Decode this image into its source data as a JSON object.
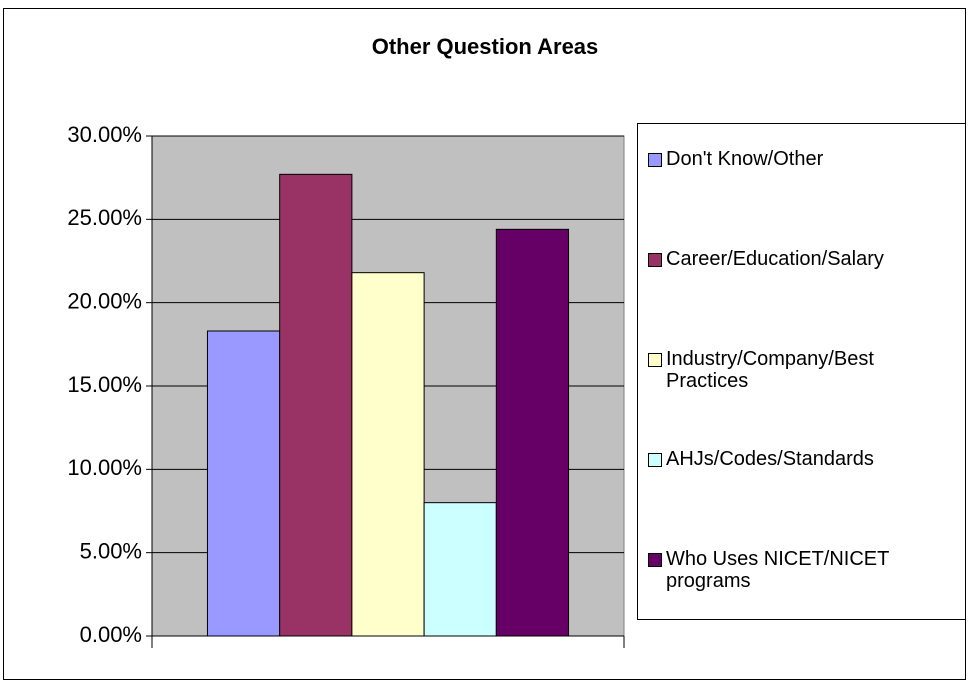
{
  "chart_data": {
    "type": "bar",
    "title": "Other Question Areas",
    "categories": [
      null
    ],
    "series": [
      {
        "name": "Don't Know/Other",
        "color": "#9999ff",
        "values": [
          18.3
        ]
      },
      {
        "name": "Career/Education/Salary",
        "color": "#993366",
        "values": [
          27.7
        ]
      },
      {
        "name": "Industry/Company/Best Practices",
        "color": "#ffffcc",
        "values": [
          21.8
        ]
      },
      {
        "name": "AHJs/Codes/Standards",
        "color": "#ccffff",
        "values": [
          8.0
        ]
      },
      {
        "name": "Who Uses NICET/NICET programs",
        "color": "#660066",
        "values": [
          24.4
        ]
      }
    ],
    "ylim": [
      0,
      30
    ],
    "yticks": [
      {
        "value": 0,
        "label": "0.00%"
      },
      {
        "value": 5,
        "label": "5.00%"
      },
      {
        "value": 10,
        "label": "10.00%"
      },
      {
        "value": 15,
        "label": "15.00%"
      },
      {
        "value": 20,
        "label": "20.00%"
      },
      {
        "value": 25,
        "label": "25.00%"
      },
      {
        "value": 30,
        "label": "30.00%"
      }
    ],
    "grid": true,
    "plot_background": "#c0c0c0",
    "legend": "right"
  }
}
